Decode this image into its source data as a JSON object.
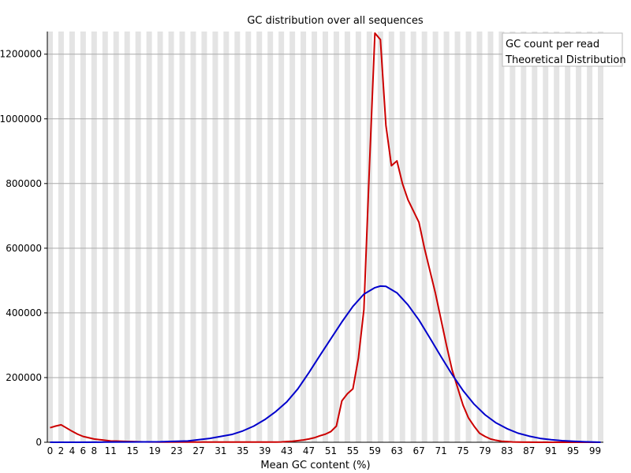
{
  "chart_data": {
    "type": "line",
    "title": "GC distribution over all sequences",
    "xlabel": "Mean GC content (%)",
    "ylabel": "",
    "xlim": [
      0,
      100
    ],
    "ylim": [
      0,
      1270000
    ],
    "x_tick_labels": [
      "0",
      "2",
      "4",
      "6",
      "8",
      "11",
      "15",
      "19",
      "23",
      "27",
      "31",
      "35",
      "39",
      "43",
      "47",
      "51",
      "55",
      "59",
      "63",
      "67",
      "71",
      "75",
      "79",
      "83",
      "87",
      "91",
      "95",
      "99"
    ],
    "y_tick_labels": [
      "0",
      "200000",
      "400000",
      "600000",
      "800000",
      "1000000",
      "1200000"
    ],
    "y_tick_values": [
      0,
      200000,
      400000,
      600000,
      800000,
      1000000,
      1200000
    ],
    "grid": true,
    "legend_position": "top-right",
    "series": [
      {
        "name": "GC count per read",
        "color": "#cc0000",
        "points": [
          [
            0,
            45000
          ],
          [
            1,
            50000
          ],
          [
            2,
            54000
          ],
          [
            3,
            44000
          ],
          [
            4,
            34000
          ],
          [
            5,
            25000
          ],
          [
            6,
            18000
          ],
          [
            7,
            14000
          ],
          [
            8,
            10000
          ],
          [
            9,
            8000
          ],
          [
            10,
            6000
          ],
          [
            11,
            4000
          ],
          [
            12,
            3500
          ],
          [
            13,
            3000
          ],
          [
            14,
            2500
          ],
          [
            15,
            2000
          ],
          [
            16,
            1500
          ],
          [
            17,
            1200
          ],
          [
            18,
            1000
          ],
          [
            19,
            800
          ],
          [
            20,
            700
          ],
          [
            21,
            600
          ],
          [
            22,
            500
          ],
          [
            23,
            500
          ],
          [
            24,
            500
          ],
          [
            25,
            500
          ],
          [
            26,
            500
          ],
          [
            27,
            500
          ],
          [
            28,
            500
          ],
          [
            29,
            500
          ],
          [
            30,
            500
          ],
          [
            31,
            500
          ],
          [
            32,
            500
          ],
          [
            33,
            500
          ],
          [
            34,
            500
          ],
          [
            35,
            500
          ],
          [
            36,
            500
          ],
          [
            37,
            500
          ],
          [
            38,
            500
          ],
          [
            39,
            500
          ],
          [
            40,
            500
          ],
          [
            41,
            500
          ],
          [
            42,
            1000
          ],
          [
            43,
            2000
          ],
          [
            44,
            3000
          ],
          [
            45,
            5000
          ],
          [
            46,
            7000
          ],
          [
            47,
            10000
          ],
          [
            48,
            14000
          ],
          [
            49,
            20000
          ],
          [
            50,
            25000
          ],
          [
            51,
            33000
          ],
          [
            52,
            50000
          ],
          [
            53,
            128000
          ],
          [
            54,
            150000
          ],
          [
            55,
            165000
          ],
          [
            56,
            260000
          ],
          [
            57,
            410000
          ],
          [
            58,
            850000
          ],
          [
            59,
            1265000
          ],
          [
            60,
            1245000
          ],
          [
            61,
            980000
          ],
          [
            62,
            855000
          ],
          [
            63,
            870000
          ],
          [
            64,
            800000
          ],
          [
            65,
            750000
          ],
          [
            66,
            715000
          ],
          [
            67,
            680000
          ],
          [
            68,
            600000
          ],
          [
            69,
            530000
          ],
          [
            70,
            460000
          ],
          [
            71,
            380000
          ],
          [
            72,
            300000
          ],
          [
            73,
            225000
          ],
          [
            74,
            170000
          ],
          [
            75,
            115000
          ],
          [
            76,
            75000
          ],
          [
            77,
            50000
          ],
          [
            78,
            28000
          ],
          [
            79,
            18000
          ],
          [
            80,
            10000
          ],
          [
            81,
            6000
          ],
          [
            82,
            3000
          ],
          [
            83,
            2000
          ],
          [
            84,
            1000
          ],
          [
            85,
            500
          ],
          [
            86,
            300
          ],
          [
            87,
            200
          ],
          [
            88,
            100
          ],
          [
            89,
            100
          ],
          [
            90,
            100
          ],
          [
            91,
            0
          ],
          [
            92,
            0
          ],
          [
            93,
            0
          ],
          [
            94,
            0
          ],
          [
            95,
            0
          ],
          [
            96,
            0
          ],
          [
            97,
            0
          ],
          [
            98,
            0
          ],
          [
            99,
            0
          ],
          [
            100,
            0
          ]
        ]
      },
      {
        "name": "Theoretical Distribution",
        "color": "#0000cc",
        "points": [
          [
            0,
            0
          ],
          [
            5,
            100
          ],
          [
            10,
            500
          ],
          [
            15,
            1000
          ],
          [
            20,
            1500
          ],
          [
            23,
            3000
          ],
          [
            25,
            4000
          ],
          [
            27,
            8000
          ],
          [
            29,
            12000
          ],
          [
            31,
            18000
          ],
          [
            33,
            24000
          ],
          [
            35,
            35000
          ],
          [
            37,
            50000
          ],
          [
            39,
            70000
          ],
          [
            41,
            95000
          ],
          [
            43,
            125000
          ],
          [
            45,
            165000
          ],
          [
            47,
            215000
          ],
          [
            49,
            268000
          ],
          [
            51,
            320000
          ],
          [
            53,
            372000
          ],
          [
            55,
            420000
          ],
          [
            57,
            458000
          ],
          [
            59,
            478000
          ],
          [
            60,
            483000
          ],
          [
            61,
            482000
          ],
          [
            63,
            462000
          ],
          [
            65,
            425000
          ],
          [
            67,
            378000
          ],
          [
            69,
            322000
          ],
          [
            71,
            265000
          ],
          [
            73,
            210000
          ],
          [
            75,
            160000
          ],
          [
            77,
            118000
          ],
          [
            79,
            85000
          ],
          [
            81,
            60000
          ],
          [
            83,
            42000
          ],
          [
            85,
            28000
          ],
          [
            87,
            19000
          ],
          [
            89,
            12000
          ],
          [
            91,
            8000
          ],
          [
            93,
            5000
          ],
          [
            95,
            3000
          ],
          [
            97,
            1500
          ],
          [
            99,
            500
          ],
          [
            100,
            0
          ]
        ]
      }
    ]
  }
}
